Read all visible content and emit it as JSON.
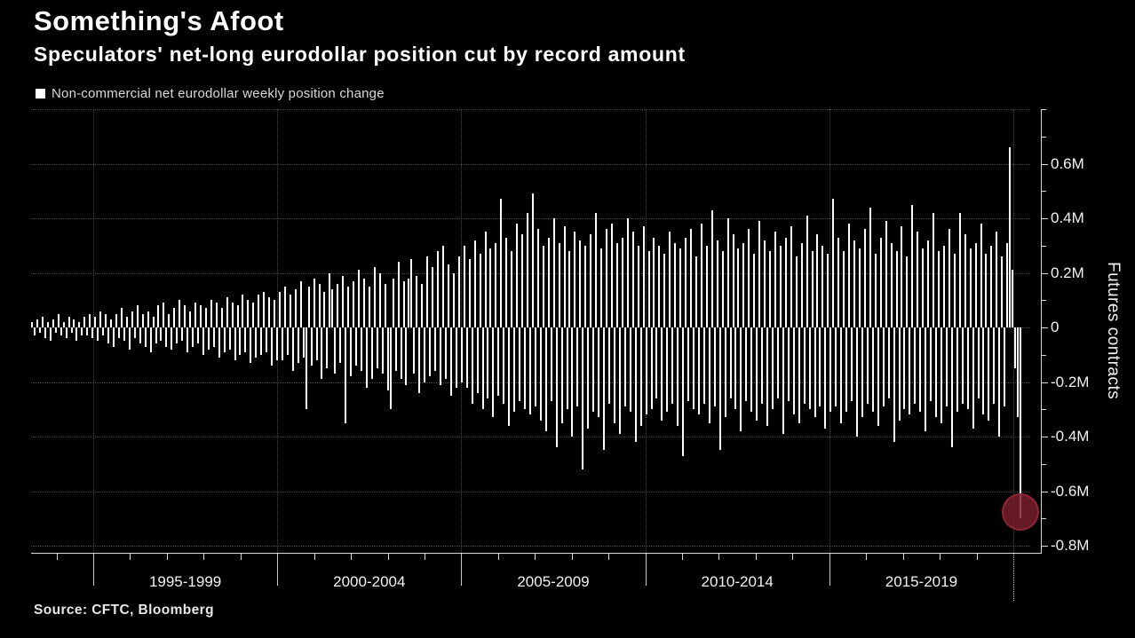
{
  "header": {
    "title": "Something's Afoot",
    "subtitle": "Speculators' net-long eurodollar position cut by record amount"
  },
  "legend": {
    "label": "Non-commercial net eurodollar weekly position change",
    "marker_color": "#ffffff"
  },
  "footer": {
    "source": "Source: CFTC, Bloomberg"
  },
  "colors": {
    "background": "#000000",
    "bars": "#ffffff",
    "grid": "#4a4a4a",
    "axis": "#d8d8d8",
    "text": "#f2f2f2",
    "highlight": "#7b1f2c"
  },
  "chart_data": {
    "type": "bar",
    "title": "Something's Afoot",
    "subtitle": "Speculators' net-long eurodollar position cut by record amount",
    "x_axis": {
      "period_labels": [
        "1995-1999",
        "2000-2004",
        "2005-2009",
        "2010-2014",
        "2015-2019"
      ]
    },
    "y_axis": {
      "title": "Futures contracts",
      "unit_suffix": "M",
      "range_m": [
        -0.83,
        0.8
      ],
      "minor_tick_step_m": 0.1,
      "gridline_values": [
        0.8,
        0.6,
        0.4,
        0.2,
        0,
        -0.2,
        -0.4,
        -0.6,
        -0.8
      ],
      "tick_labels": [
        {
          "value": 0.6,
          "label": "0.6M"
        },
        {
          "value": 0.4,
          "label": "0.4M"
        },
        {
          "value": 0.2,
          "label": "0.2M"
        },
        {
          "value": 0,
          "label": "0"
        },
        {
          "value": -0.2,
          "label": "-0.2M"
        },
        {
          "value": -0.4,
          "label": "-0.4M"
        },
        {
          "value": -0.6,
          "label": "-0.6M"
        },
        {
          "value": -0.8,
          "label": "-0.8M"
        }
      ]
    },
    "series": {
      "name": "Non-commercial net eurodollar weekly position change",
      "color": "#ffffff",
      "values_m": [
        0.02,
        -0.03,
        0.03,
        -0.02,
        0.04,
        -0.04,
        0.02,
        -0.05,
        0.03,
        -0.02,
        0.05,
        -0.03,
        0.02,
        -0.04,
        0.04,
        -0.02,
        0.03,
        -0.05,
        0.02,
        -0.03,
        0.04,
        -0.03,
        0.05,
        -0.04,
        0.04,
        -0.05,
        0.06,
        -0.03,
        0.05,
        -0.06,
        0.03,
        -0.07,
        0.05,
        -0.04,
        0.07,
        -0.05,
        0.04,
        -0.08,
        0.06,
        -0.04,
        0.08,
        -0.06,
        0.05,
        -0.07,
        0.06,
        -0.09,
        0.04,
        -0.06,
        0.08,
        -0.05,
        0.09,
        -0.07,
        0.05,
        -0.08,
        0.07,
        -0.06,
        0.1,
        -0.05,
        0.08,
        -0.09,
        0.06,
        -0.07,
        0.09,
        -0.06,
        0.08,
        -0.1,
        0.07,
        -0.08,
        0.1,
        -0.07,
        0.09,
        -0.11,
        0.07,
        -0.09,
        0.11,
        -0.08,
        0.09,
        -0.12,
        0.08,
        -0.1,
        0.12,
        -0.09,
        0.1,
        -0.13,
        0.09,
        -0.11,
        0.12,
        -0.1,
        0.13,
        -0.09,
        0.11,
        -0.14,
        0.1,
        -0.12,
        0.13,
        -0.12,
        0.15,
        -0.1,
        0.12,
        -0.16,
        0.14,
        -0.13,
        0.17,
        -0.11,
        -0.3,
        0.15,
        -0.14,
        0.18,
        -0.12,
        0.16,
        -0.19,
        0.13,
        -0.15,
        0.2,
        0.14,
        -0.17,
        0.16,
        -0.13,
        0.19,
        -0.35,
        0.15,
        -0.18,
        0.17,
        -0.14,
        0.21,
        -0.16,
        0.18,
        -0.22,
        0.15,
        -0.19,
        0.22,
        -0.15,
        0.2,
        -0.17,
        0.16,
        -0.23,
        -0.3,
        0.18,
        -0.16,
        0.24,
        -0.19,
        0.17,
        -0.21,
        0.18,
        0.25,
        -0.17,
        0.19,
        -0.24,
        0.16,
        -0.2,
        0.26,
        -0.18,
        0.22,
        -0.16,
        0.28,
        -0.21,
        0.3,
        -0.19,
        0.23,
        -0.25,
        0.2,
        -0.22,
        0.26,
        -0.2,
        0.3,
        -0.22,
        0.25,
        -0.28,
        0.32,
        -0.24,
        0.27,
        -0.3,
        0.35,
        -0.26,
        0.29,
        -0.33,
        0.31,
        -0.25,
        0.47,
        -0.28,
        0.33,
        -0.36,
        0.28,
        -0.31,
        0.38,
        -0.27,
        0.34,
        -0.3,
        0.42,
        -0.32,
        0.49,
        -0.29,
        0.36,
        -0.34,
        0.3,
        -0.38,
        0.33,
        -0.27,
        0.4,
        -0.44,
        0.31,
        -0.35,
        0.37,
        -0.3,
        0.28,
        -0.4,
        0.35,
        -0.29,
        0.32,
        -0.52,
        0.3,
        -0.37,
        0.34,
        -0.31,
        0.42,
        -0.33,
        0.29,
        -0.45,
        0.36,
        -0.28,
        0.38,
        -0.35,
        0.31,
        -0.39,
        0.33,
        -0.29,
        0.4,
        -0.31,
        0.35,
        -0.42,
        0.3,
        -0.36,
        0.37,
        -0.32,
        0.28,
        -0.3,
        0.33,
        -0.26,
        0.3,
        -0.34,
        0.27,
        -0.31,
        0.35,
        -0.28,
        0.31,
        -0.36,
        0.29,
        -0.47,
        0.33,
        -0.27,
        0.36,
        -0.3,
        0.26,
        -0.32,
        0.38,
        -0.28,
        0.3,
        -0.35,
        0.43,
        -0.29,
        0.32,
        -0.45,
        0.28,
        -0.33,
        0.4,
        -0.26,
        0.34,
        -0.3,
        0.29,
        -0.38,
        0.31,
        -0.27,
        0.36,
        -0.31,
        0.27,
        -0.34,
        0.39,
        -0.28,
        0.32,
        -0.36,
        0.28,
        -0.3,
        0.35,
        -0.26,
        0.3,
        -0.39,
        0.33,
        -0.27,
        0.37,
        -0.32,
        0.26,
        -0.35,
        0.31,
        -0.28,
        0.41,
        -0.3,
        0.28,
        -0.33,
        0.34,
        -0.29,
        0.3,
        -0.37,
        0.27,
        -0.31,
        0.47,
        -0.29,
        0.33,
        -0.35,
        0.28,
        -0.31,
        0.38,
        -0.27,
        0.32,
        -0.4,
        0.29,
        -0.33,
        0.36,
        -0.28,
        0.44,
        -0.31,
        0.27,
        -0.36,
        0.33,
        -0.29,
        0.39,
        -0.26,
        0.31,
        -0.42,
        0.28,
        -0.34,
        0.37,
        -0.3,
        0.26,
        -0.32,
        0.45,
        -0.28,
        0.35,
        -0.31,
        0.29,
        -0.38,
        0.32,
        -0.27,
        0.42,
        -0.33,
        0.28,
        -0.35,
        0.3,
        -0.29,
        0.36,
        -0.44,
        0.27,
        -0.31,
        0.42,
        -0.28,
        0.34,
        -0.3,
        0.29,
        -0.37,
        0.31,
        -0.26,
        0.38,
        -0.32,
        0.27,
        -0.34,
        0.3,
        -0.28,
        0.35,
        -0.4,
        0.26,
        -0.29,
        0.31,
        0.66,
        0.21,
        -0.15,
        -0.33,
        -0.7
      ]
    },
    "highlight": {
      "index": 375,
      "approx_value_m": -0.7,
      "color": "#7b1f2c",
      "radius_px": 21
    }
  }
}
